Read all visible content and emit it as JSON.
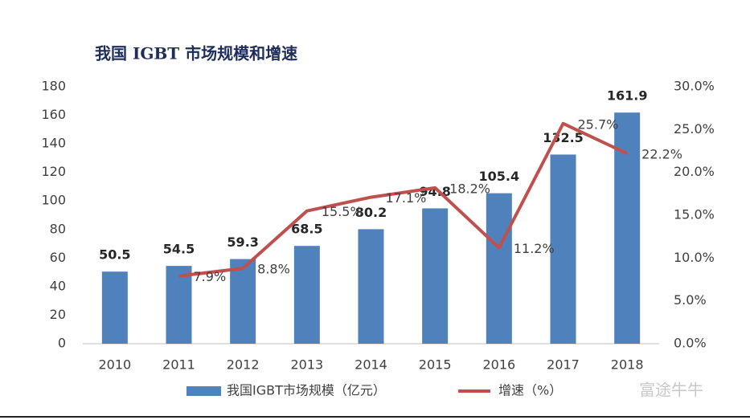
{
  "chart_data": {
    "type": "bar",
    "title": "我国 IGBT 市场规模和增速",
    "categories": [
      "2010",
      "2011",
      "2012",
      "2013",
      "2014",
      "2015",
      "2016",
      "2017",
      "2018"
    ],
    "series": [
      {
        "name": "我国IGBT市场规模（亿元）",
        "type": "bar",
        "color": "#4f81bd",
        "values": [
          50.5,
          54.5,
          59.3,
          68.5,
          80.2,
          94.8,
          105.4,
          132.5,
          161.9
        ]
      },
      {
        "name": "增速（%）",
        "type": "line",
        "axis": "y2",
        "color": "#c0504d",
        "values": [
          null,
          7.9,
          8.8,
          15.5,
          17.1,
          18.2,
          11.2,
          25.7,
          22.2
        ],
        "value_labels": [
          null,
          "7.9%",
          "8.8%",
          "15.5%",
          "17.1%",
          "18.2%",
          "11.2%",
          "25.7%",
          "22.2%"
        ]
      }
    ],
    "ylim": [
      0,
      180
    ],
    "yticks": [
      0,
      20,
      40,
      60,
      80,
      100,
      120,
      140,
      160,
      180
    ],
    "y2lim": [
      0,
      30
    ],
    "y2ticks": [
      {
        "value": 0,
        "label": "0.0%"
      },
      {
        "value": 5,
        "label": "5.0%"
      },
      {
        "value": 10,
        "label": "10.0%"
      },
      {
        "value": 15,
        "label": "15.0%"
      },
      {
        "value": 20,
        "label": "20.0%"
      },
      {
        "value": 25,
        "label": "25.0%"
      },
      {
        "value": 30,
        "label": "30.0%"
      }
    ],
    "grid": false,
    "legend": "bottom",
    "watermark": "富途牛牛"
  }
}
